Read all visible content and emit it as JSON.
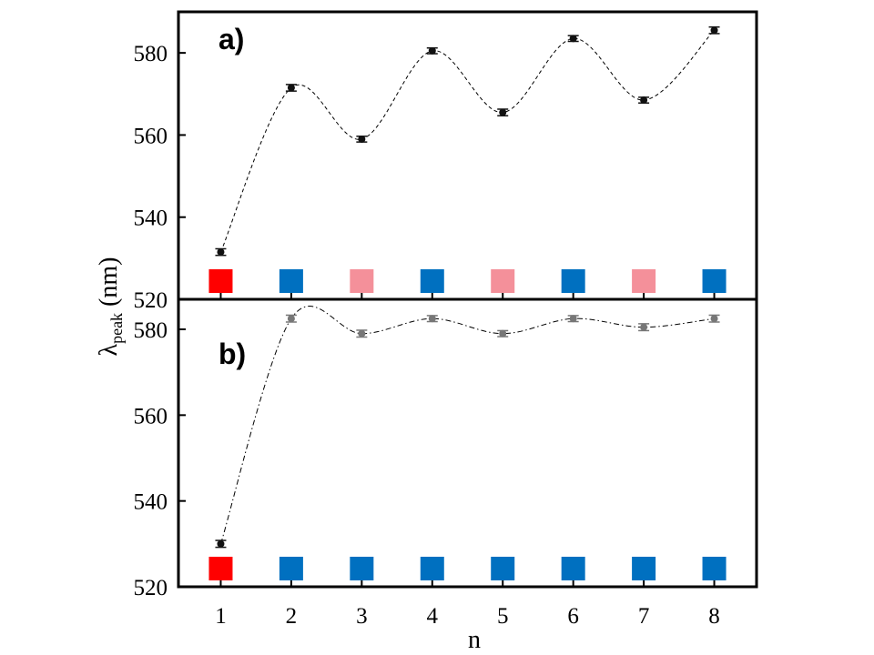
{
  "chart_data": [
    {
      "type": "scatter",
      "panel_label": "a)",
      "x": [
        1,
        2,
        3,
        4,
        5,
        6,
        7,
        8
      ],
      "y": [
        531.5,
        571.5,
        559,
        580.5,
        565.5,
        583.5,
        568.5,
        585.5
      ],
      "yerr": [
        0.8,
        0.8,
        0.7,
        0.7,
        0.8,
        0.7,
        0.7,
        0.8
      ],
      "xlim": [
        0.4,
        8.6
      ],
      "ylim": [
        520,
        590
      ],
      "yticks": [
        520,
        540,
        560,
        580
      ],
      "marker_color": "#111111",
      "curve_style": "dashed",
      "squares": [
        {
          "n": 1,
          "color": "#ff0000"
        },
        {
          "n": 2,
          "color": "#0070c0"
        },
        {
          "n": 3,
          "color": "#f4909a"
        },
        {
          "n": 4,
          "color": "#0070c0"
        },
        {
          "n": 5,
          "color": "#f4909a"
        },
        {
          "n": 6,
          "color": "#0070c0"
        },
        {
          "n": 7,
          "color": "#f4909a"
        },
        {
          "n": 8,
          "color": "#0070c0"
        }
      ]
    },
    {
      "type": "scatter",
      "panel_label": "b)",
      "x": [
        1,
        2,
        3,
        4,
        5,
        6,
        7,
        8
      ],
      "y": [
        530,
        582.5,
        579,
        582.5,
        579,
        582.5,
        580.5,
        582.5
      ],
      "yerr": [
        0.8,
        0.8,
        0.8,
        0.7,
        0.7,
        0.7,
        0.8,
        0.8
      ],
      "xlim": [
        0.4,
        8.6
      ],
      "ylim": [
        520,
        587
      ],
      "yticks": [
        520,
        540,
        560,
        580
      ],
      "marker_color": "#111111",
      "marker_color_rest": "#777777",
      "curve_style": "dashdot",
      "squares": [
        {
          "n": 1,
          "color": "#ff0000"
        },
        {
          "n": 2,
          "color": "#0070c0"
        },
        {
          "n": 3,
          "color": "#0070c0"
        },
        {
          "n": 4,
          "color": "#0070c0"
        },
        {
          "n": 5,
          "color": "#0070c0"
        },
        {
          "n": 6,
          "color": "#0070c0"
        },
        {
          "n": 7,
          "color": "#0070c0"
        },
        {
          "n": 8,
          "color": "#0070c0"
        }
      ]
    }
  ],
  "axes": {
    "xlabel": "n",
    "ylabel_main": "λ",
    "ylabel_sub": "peak",
    "ylabel_unit": " (nm)",
    "xticks": [
      "1",
      "2",
      "3",
      "4",
      "5",
      "6",
      "7",
      "8"
    ]
  }
}
